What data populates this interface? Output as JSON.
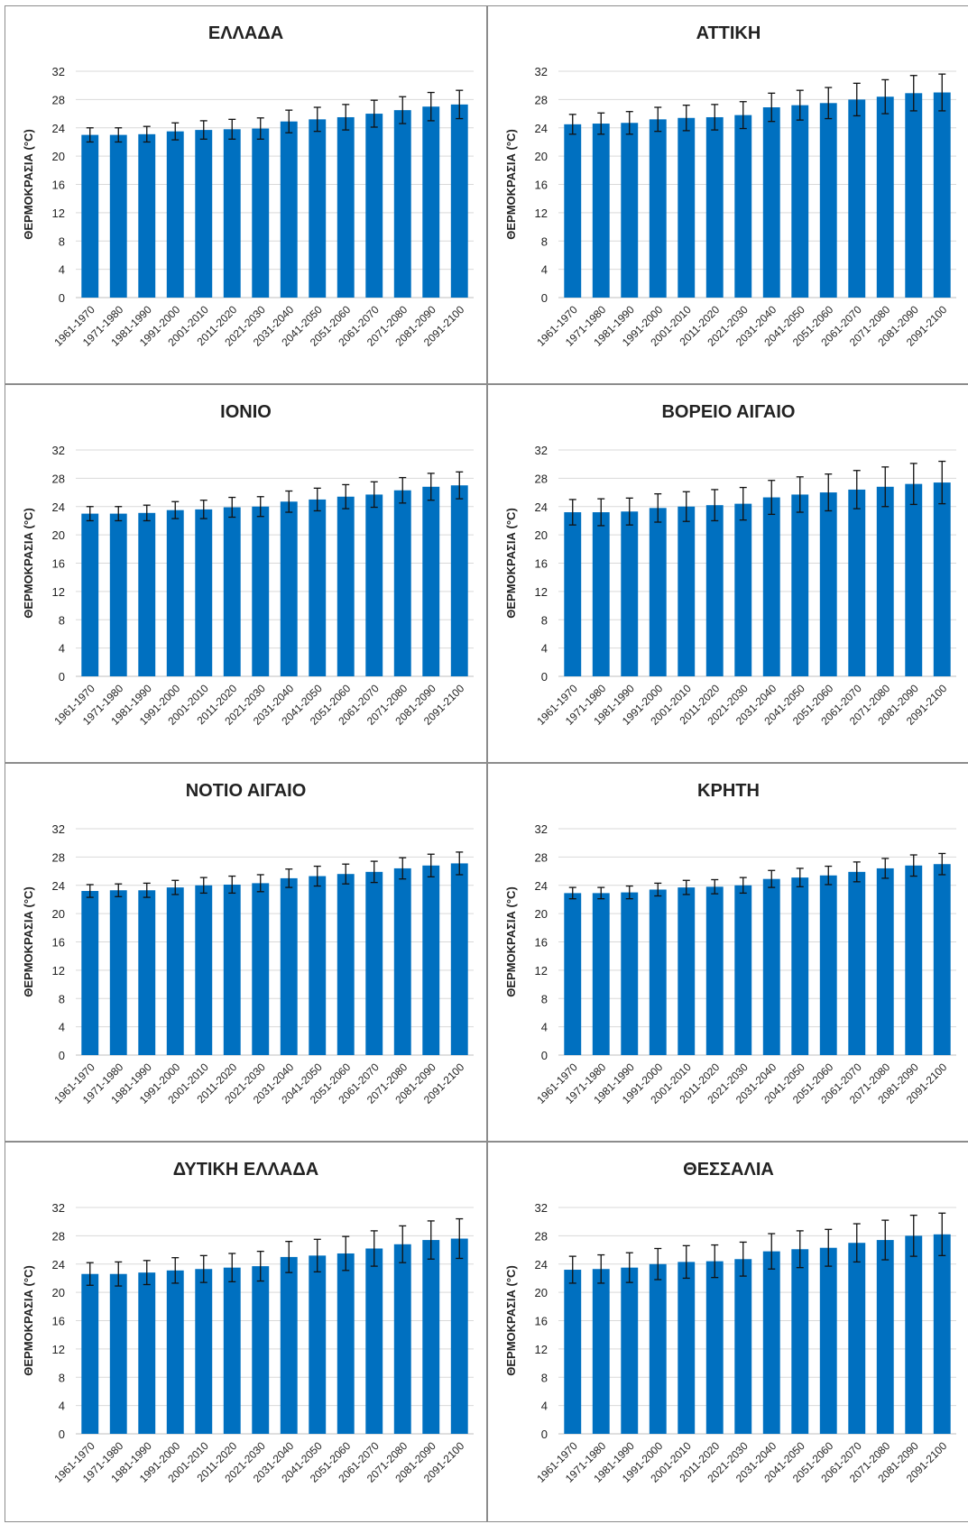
{
  "chart_data": [
    {
      "type": "bar",
      "title": "ΕΛΛΑΔΑ",
      "ylabel": "ΘΕΡΜΟΚΡΑΣΙΑ (°C)",
      "ylim": [
        0,
        32
      ],
      "yticks": [
        0,
        4,
        8,
        12,
        16,
        20,
        24,
        28,
        32
      ],
      "grid": true,
      "categories": [
        "1961-1970",
        "1971-1980",
        "1981-1990",
        "1991-2000",
        "2001-2010",
        "2011-2020",
        "2021-2030",
        "2031-2040",
        "2041-2050",
        "2051-2060",
        "2061-2070",
        "2071-2080",
        "2081-2090",
        "2091-2100"
      ],
      "values": [
        23.0,
        23.0,
        23.1,
        23.5,
        23.7,
        23.8,
        23.9,
        24.9,
        25.2,
        25.5,
        26.0,
        26.5,
        27.0,
        27.3
      ],
      "error": [
        1.0,
        1.0,
        1.1,
        1.2,
        1.3,
        1.4,
        1.5,
        1.6,
        1.7,
        1.8,
        1.9,
        1.9,
        2.0,
        2.0
      ],
      "color": "#0070c0"
    },
    {
      "type": "bar",
      "title": "ΑΤΤΙΚΗ",
      "ylabel": "ΘΕΡΜΟΚΡΑΣΙΑ (°C)",
      "ylim": [
        0,
        32
      ],
      "yticks": [
        0,
        4,
        8,
        12,
        16,
        20,
        24,
        28,
        32
      ],
      "grid": true,
      "categories": [
        "1961-1970",
        "1971-1980",
        "1981-1990",
        "1991-2000",
        "2001-2010",
        "2011-2020",
        "2021-2030",
        "2031-2040",
        "2041-2050",
        "2051-2060",
        "2061-2070",
        "2071-2080",
        "2081-2090",
        "2091-2100"
      ],
      "values": [
        24.5,
        24.6,
        24.7,
        25.2,
        25.4,
        25.5,
        25.8,
        26.9,
        27.2,
        27.5,
        28.0,
        28.4,
        28.9,
        29.0
      ],
      "error": [
        1.4,
        1.5,
        1.6,
        1.7,
        1.8,
        1.8,
        1.9,
        2.0,
        2.1,
        2.2,
        2.3,
        2.4,
        2.5,
        2.6
      ],
      "color": "#0070c0"
    },
    {
      "type": "bar",
      "title": "ΙΟΝΙΟ",
      "ylabel": "ΘΕΡΜΟΚΡΑΣΙΑ (°C)",
      "ylim": [
        0,
        32
      ],
      "yticks": [
        0,
        4,
        8,
        12,
        16,
        20,
        24,
        28,
        32
      ],
      "grid": true,
      "categories": [
        "1961-1970",
        "1971-1980",
        "1981-1990",
        "1991-2000",
        "2001-2010",
        "2011-2020",
        "2021-2030",
        "2031-2040",
        "2041-2050",
        "2051-2060",
        "2061-2070",
        "2071-2080",
        "2081-2090",
        "2091-2100"
      ],
      "values": [
        23.0,
        23.0,
        23.1,
        23.5,
        23.6,
        23.9,
        24.0,
        24.7,
        25.0,
        25.4,
        25.7,
        26.3,
        26.8,
        27.0
      ],
      "error": [
        1.0,
        1.0,
        1.1,
        1.2,
        1.3,
        1.4,
        1.4,
        1.5,
        1.6,
        1.7,
        1.8,
        1.8,
        1.9,
        1.9
      ],
      "color": "#0070c0"
    },
    {
      "type": "bar",
      "title": "ΒΟΡΕΙΟ ΑΙΓΑΙΟ",
      "ylabel": "ΘΕΡΜΟΚΡΑΣΙΑ (°C)",
      "ylim": [
        0,
        32
      ],
      "yticks": [
        0,
        4,
        8,
        12,
        16,
        20,
        24,
        28,
        32
      ],
      "grid": true,
      "categories": [
        "1961-1970",
        "1971-1980",
        "1981-1990",
        "1991-2000",
        "2001-2010",
        "2011-2020",
        "2021-2030",
        "2031-2040",
        "2041-2050",
        "2051-2060",
        "2061-2070",
        "2071-2080",
        "2081-2090",
        "2091-2100"
      ],
      "values": [
        23.2,
        23.2,
        23.3,
        23.8,
        24.0,
        24.2,
        24.4,
        25.3,
        25.7,
        26.0,
        26.4,
        26.8,
        27.2,
        27.4
      ],
      "error": [
        1.8,
        1.9,
        1.9,
        2.0,
        2.1,
        2.2,
        2.3,
        2.4,
        2.5,
        2.6,
        2.7,
        2.8,
        2.9,
        3.0
      ],
      "color": "#0070c0"
    },
    {
      "type": "bar",
      "title": "ΝΟΤΙΟ ΑΙΓΑΙΟ",
      "ylabel": "ΘΕΡΜΟΚΡΑΣΙΑ (°C)",
      "ylim": [
        0,
        32
      ],
      "yticks": [
        0,
        4,
        8,
        12,
        16,
        20,
        24,
        28,
        32
      ],
      "grid": true,
      "categories": [
        "1961-1970",
        "1971-1980",
        "1981-1990",
        "1991-2000",
        "2001-2010",
        "2011-2020",
        "2021-2030",
        "2031-2040",
        "2041-2050",
        "2051-2060",
        "2061-2070",
        "2071-2080",
        "2081-2090",
        "2091-2100"
      ],
      "values": [
        23.2,
        23.3,
        23.3,
        23.7,
        24.0,
        24.1,
        24.3,
        25.0,
        25.3,
        25.6,
        25.9,
        26.4,
        26.8,
        27.1
      ],
      "error": [
        0.9,
        0.9,
        1.0,
        1.0,
        1.1,
        1.2,
        1.2,
        1.3,
        1.4,
        1.4,
        1.5,
        1.5,
        1.6,
        1.6
      ],
      "color": "#0070c0"
    },
    {
      "type": "bar",
      "title": "ΚΡΗΤΗ",
      "ylabel": "ΘΕΡΜΟΚΡΑΣΙΑ (°C)",
      "ylim": [
        0,
        32
      ],
      "yticks": [
        0,
        4,
        8,
        12,
        16,
        20,
        24,
        28,
        32
      ],
      "grid": true,
      "categories": [
        "1961-1970",
        "1971-1980",
        "1981-1990",
        "1991-2000",
        "2001-2010",
        "2011-2020",
        "2021-2030",
        "2031-2040",
        "2041-2050",
        "2051-2060",
        "2061-2070",
        "2071-2080",
        "2081-2090",
        "2091-2100"
      ],
      "values": [
        22.9,
        22.9,
        23.0,
        23.4,
        23.7,
        23.8,
        24.0,
        24.9,
        25.1,
        25.4,
        25.9,
        26.4,
        26.8,
        27.0
      ],
      "error": [
        0.8,
        0.8,
        0.9,
        0.9,
        1.0,
        1.0,
        1.1,
        1.2,
        1.3,
        1.3,
        1.4,
        1.4,
        1.5,
        1.5
      ],
      "color": "#0070c0"
    },
    {
      "type": "bar",
      "title": "ΔΥΤΙΚΗ ΕΛΛΑΔΑ",
      "ylabel": "ΘΕΡΜΟΚΡΑΣΙΑ (°C)",
      "ylim": [
        0,
        32
      ],
      "yticks": [
        0,
        4,
        8,
        12,
        16,
        20,
        24,
        28,
        32
      ],
      "grid": true,
      "categories": [
        "1961-1970",
        "1971-1980",
        "1981-1990",
        "1991-2000",
        "2001-2010",
        "2011-2020",
        "2021-2030",
        "2031-2040",
        "2041-2050",
        "2051-2060",
        "2061-2070",
        "2071-2080",
        "2081-2090",
        "2091-2100"
      ],
      "values": [
        22.6,
        22.6,
        22.8,
        23.1,
        23.3,
        23.5,
        23.7,
        25.0,
        25.2,
        25.5,
        26.2,
        26.8,
        27.4,
        27.6
      ],
      "error": [
        1.6,
        1.7,
        1.7,
        1.8,
        1.9,
        2.0,
        2.1,
        2.2,
        2.3,
        2.4,
        2.5,
        2.6,
        2.7,
        2.8
      ],
      "color": "#0070c0"
    },
    {
      "type": "bar",
      "title": "ΘΕΣΣΑΛΙΑ",
      "ylabel": "ΘΕΡΜΟΚΡΑΣΙΑ (°C)",
      "ylim": [
        0,
        32
      ],
      "yticks": [
        0,
        4,
        8,
        12,
        16,
        20,
        24,
        28,
        32
      ],
      "grid": true,
      "categories": [
        "1961-1970",
        "1971-1980",
        "1981-1990",
        "1991-2000",
        "2001-2010",
        "2011-2020",
        "2021-2030",
        "2031-2040",
        "2041-2050",
        "2051-2060",
        "2061-2070",
        "2071-2080",
        "2081-2090",
        "2091-2100"
      ],
      "values": [
        23.2,
        23.3,
        23.5,
        24.0,
        24.3,
        24.4,
        24.7,
        25.8,
        26.1,
        26.3,
        27.0,
        27.4,
        28.0,
        28.2
      ],
      "error": [
        1.9,
        2.0,
        2.1,
        2.2,
        2.3,
        2.3,
        2.4,
        2.5,
        2.6,
        2.6,
        2.7,
        2.8,
        2.9,
        3.0
      ],
      "color": "#0070c0"
    }
  ]
}
